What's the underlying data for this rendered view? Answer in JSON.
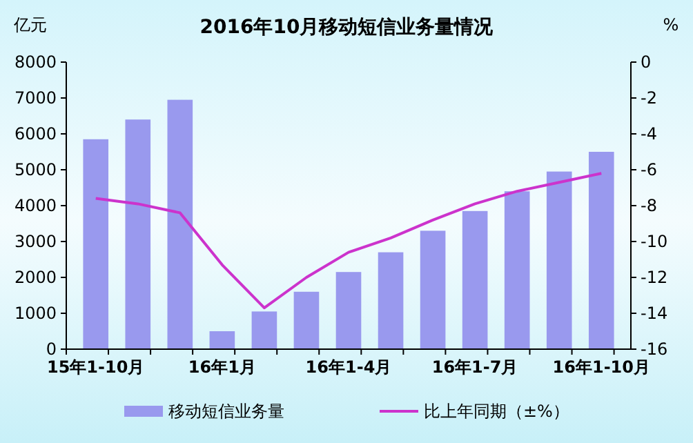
{
  "chart_data": {
    "type": "bar",
    "title": "2016年10月移动短信业务量情况",
    "ylabel": "亿元",
    "y2label": "%",
    "categories": [
      "15年1-10月",
      null,
      null,
      "16年1月",
      null,
      null,
      "16年1-4月",
      null,
      null,
      "16年1-7月",
      null,
      null,
      "16年1-10月"
    ],
    "series": [
      {
        "name": "移动短信业务量",
        "color": "#9999ee",
        "values": [
          5850,
          6400,
          6950,
          500,
          1050,
          1600,
          2150,
          2700,
          3300,
          3850,
          4400,
          4950,
          5500
        ]
      },
      {
        "name": "比上年同期（±%）",
        "type": "line",
        "axis": "y2",
        "color": "#cc33cc",
        "values": [
          -7.6,
          -7.9,
          -8.4,
          -11.3,
          -13.7,
          -12.0,
          -10.6,
          -9.8,
          -8.8,
          -7.9,
          -7.2,
          -6.7,
          -6.2
        ]
      }
    ],
    "ylim": [
      0,
      8000
    ],
    "yticks": [
      0,
      1000,
      2000,
      3000,
      4000,
      5000,
      6000,
      7000,
      8000
    ],
    "y2lim": [
      -16,
      0
    ],
    "y2ticks": [
      -16,
      -14,
      -12,
      -10,
      -8,
      -6,
      -4,
      -2,
      0
    ],
    "grid": false,
    "legend": "bottom",
    "marker": "none",
    "line_style": "solid"
  }
}
